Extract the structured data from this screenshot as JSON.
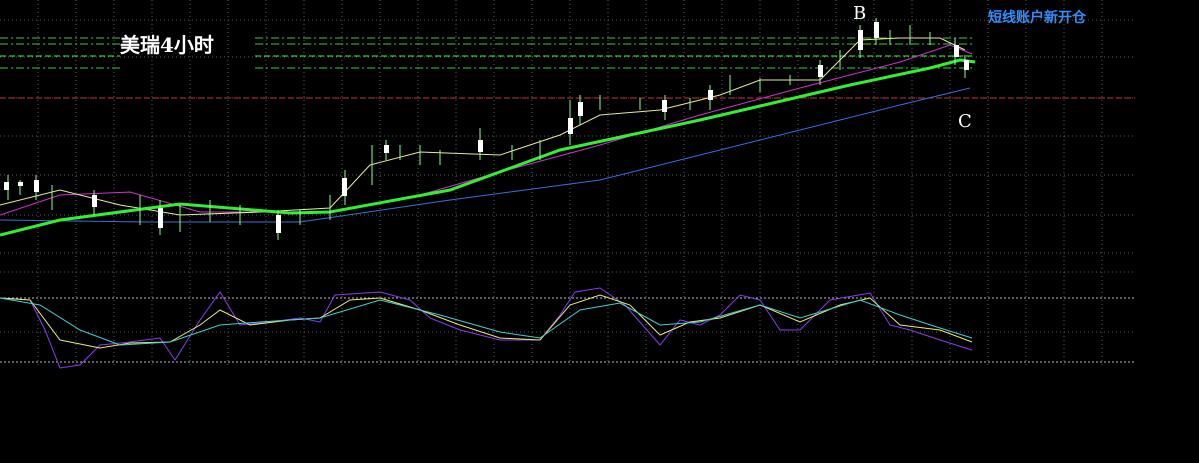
{
  "header": {
    "title": "美瑞4小时",
    "note": "短线账户新开仓"
  },
  "annotations": {
    "point_b": "B",
    "point_c": "C"
  }
}
